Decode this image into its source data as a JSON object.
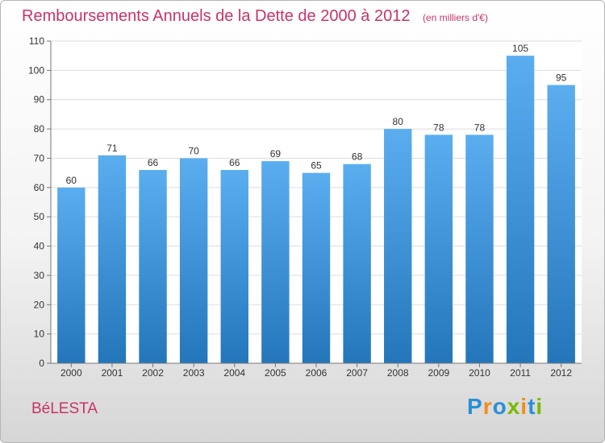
{
  "title": "Remboursements Annuels de la Dette de 2000 à 2012",
  "unit": "(en milliers d'€)",
  "commune": "BéLESTA",
  "logo": {
    "letters": [
      "P",
      "r",
      "o",
      "x",
      "i",
      "t",
      "i"
    ],
    "colors": [
      "#2a8fd6",
      "#f28c1c",
      "#2a8fd6",
      "#7ab800",
      "#f28c1c",
      "#2a8fd6",
      "#7ab800"
    ]
  },
  "colors": {
    "bar_top": "#5aaef0",
    "bar_bottom": "#2476bb",
    "title": "#c8336a",
    "grid": "#dddddd",
    "axis": "#777777"
  },
  "chart_data": {
    "type": "bar",
    "categories": [
      "2000",
      "2001",
      "2002",
      "2003",
      "2004",
      "2005",
      "2006",
      "2007",
      "2008",
      "2009",
      "2010",
      "2011",
      "2012"
    ],
    "values": [
      60,
      71,
      66,
      70,
      66,
      69,
      65,
      68,
      80,
      78,
      78,
      105,
      95
    ],
    "ylim": [
      0,
      110
    ],
    "yticks": [
      0,
      10,
      20,
      30,
      40,
      50,
      60,
      70,
      80,
      90,
      100,
      110
    ],
    "grid": true
  }
}
